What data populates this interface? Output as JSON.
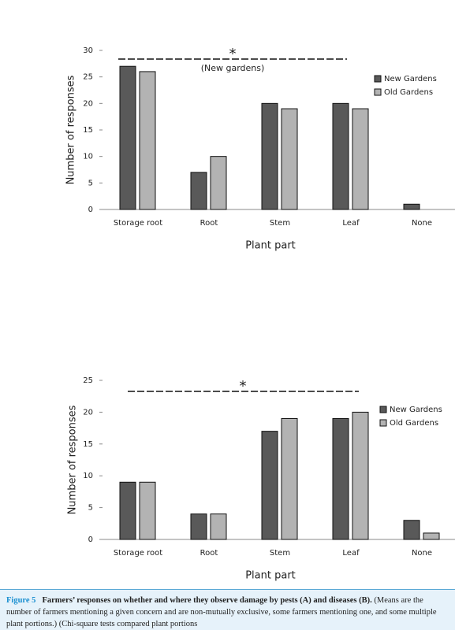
{
  "chart_data": [
    {
      "type": "bar",
      "categories": [
        "Storage root",
        "Root",
        "Stem",
        "Leaf",
        "None"
      ],
      "series": [
        {
          "name": "New Gardens",
          "color": "#595959",
          "values": [
            27,
            7,
            20,
            20,
            1
          ]
        },
        {
          "name": "Old Gardens",
          "color": "#b3b3b3",
          "values": [
            26,
            10,
            19,
            19,
            0
          ]
        }
      ],
      "ylim": [
        0,
        30
      ],
      "yticks": [
        0,
        5,
        10,
        15,
        20,
        25,
        30
      ],
      "y_label": "Number of responses",
      "x_label": "Plant part",
      "annotation": "*",
      "annotation_note": "(New gardens)",
      "legend": "right"
    },
    {
      "type": "bar",
      "categories": [
        "Storage root",
        "Root",
        "Stem",
        "Leaf",
        "None"
      ],
      "series": [
        {
          "name": "New Gardens",
          "color": "#595959",
          "values": [
            9,
            4,
            17,
            19,
            3
          ]
        },
        {
          "name": "Old Gardens",
          "color": "#b3b3b3",
          "values": [
            9,
            4,
            19,
            20,
            1
          ]
        }
      ],
      "ylim": [
        0,
        25
      ],
      "yticks": [
        0,
        5,
        10,
        15,
        20,
        25
      ],
      "y_label": "Number of responses",
      "x_label": "Plant part",
      "annotation": "*",
      "legend": "right"
    }
  ],
  "caption": {
    "label": "Figure 5",
    "title": "Farmers’ responses on whether and where they observe damage by pests (A) and diseases (B).",
    "text": "(Means are the number of farmers mentioning a given concern and are non-mutually exclusive, some farmers mentioning one, and some multiple plant portions.) (Chi-square tests compared plant portions"
  }
}
